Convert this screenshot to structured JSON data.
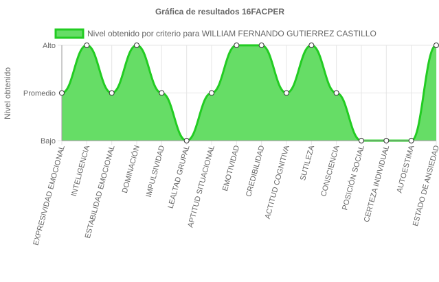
{
  "chart_data": {
    "type": "area",
    "title": "Gráfica de resultados 16FACPER",
    "xlabel": "",
    "ylabel": "Nivel obtenido",
    "y_levels": [
      "Bajo",
      "Promedio",
      "Alto"
    ],
    "ylim": [
      0,
      2
    ],
    "legend": "top",
    "grid": true,
    "categories": [
      "EXPRESIVIDAD EMOCIONAL",
      "INTELIGENCIA",
      "ESTABILIDAD EMOCIONAL",
      "DOMINACIÓN",
      "IMPULSIVIDAD",
      "LEALTAD GRUPAL",
      "APTITUD SITUACIONAL",
      "EMOTIVIDAD",
      "CREDIBILIDAD",
      "ACTITUD COGNITIVA",
      "SUTILEZA",
      "CONSCIENCIA",
      "POSICIÓN SOCIAL",
      "CERTEZA INDIVIDUAL",
      "AUTOESTIMA",
      "ESTADO DE ANSIEDAD"
    ],
    "series": [
      {
        "name": "Nivel obtenido por criterio para WILLIAM FERNANDO GUTIERREZ CASTILLO",
        "values": [
          1,
          2,
          1,
          2,
          1,
          0,
          1,
          2,
          2,
          1,
          2,
          1,
          0,
          0,
          0,
          2
        ],
        "fill_color": "#66dd66",
        "line_color": "#22cc22"
      }
    ]
  }
}
